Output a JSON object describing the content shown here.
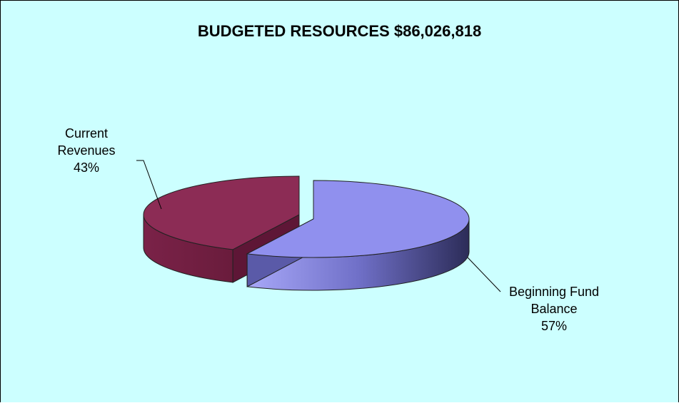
{
  "chart_data": {
    "type": "pie",
    "title": "BUDGETED RESOURCES $86,026,818",
    "style": "3d-exploded",
    "slices": [
      {
        "name": "Beginning Fund Balance",
        "value": 57,
        "percent_label": "57%",
        "color": "#9090ee"
      },
      {
        "name": "Current Revenues",
        "value": 43,
        "percent_label": "43%",
        "color": "#8c2c55"
      }
    ],
    "legend": "none"
  },
  "colors": {
    "background": "#ccffff",
    "border": "#000000"
  }
}
